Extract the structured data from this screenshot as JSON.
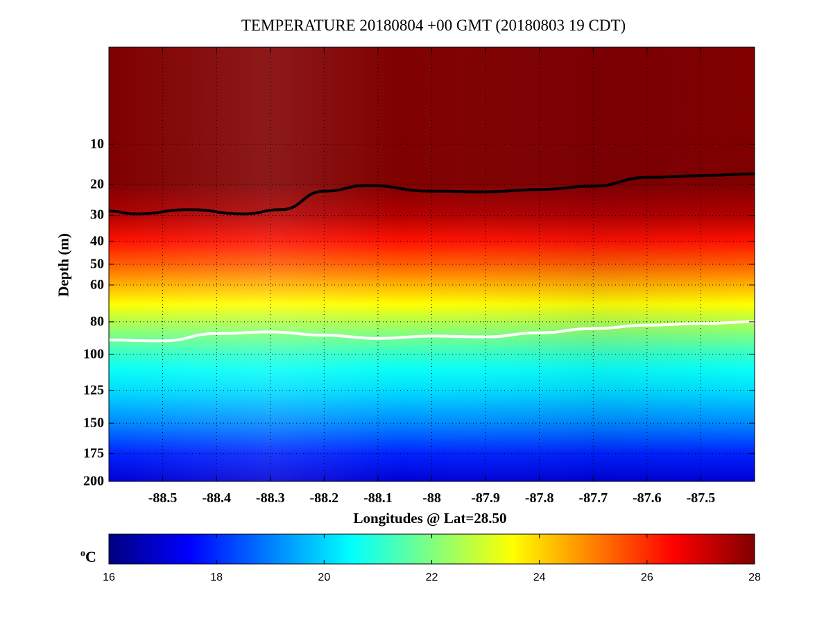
{
  "chart_data": {
    "type": "heatmap",
    "title": "TEMPERATURE 20180804 +00 GMT (20180803 19 CDT)",
    "xlabel": "Longitudes @ Lat=28.50",
    "ylabel": "Depth (m)",
    "xlim": [
      -88.6,
      -87.4
    ],
    "ylim": [
      0,
      200
    ],
    "depth_scale": "sqrt",
    "x_ticks": [
      "-88.5",
      "-88.4",
      "-88.3",
      "-88.2",
      "-88.1",
      "-88",
      "-87.9",
      "-87.8",
      "-87.7",
      "-87.6",
      "-87.5"
    ],
    "y_ticks": [
      "10",
      "20",
      "30",
      "40",
      "50",
      "60",
      "80",
      "100",
      "125",
      "150",
      "175",
      "200"
    ],
    "grid": true,
    "colormap": "jet",
    "colorbar": {
      "unit": "oC",
      "min": 16,
      "max": 28,
      "ticks": [
        "16",
        "18",
        "20",
        "22",
        "24",
        "26",
        "28"
      ]
    },
    "temperature_profile": {
      "depths": [
        0,
        20,
        30,
        40,
        50,
        60,
        70,
        80,
        90,
        100,
        110,
        125,
        150,
        175,
        200
      ],
      "temps": [
        28.5,
        28.2,
        27.4,
        26.3,
        25.4,
        24.4,
        23.5,
        22.6,
        21.8,
        21.1,
        20.6,
        20.1,
        19.1,
        17.9,
        17.0
      ]
    },
    "contours": [
      {
        "label": "28",
        "color": "#000000",
        "x": [
          -88.6,
          -88.55,
          -88.45,
          -88.35,
          -88.28,
          -88.2,
          -88.12,
          -88.0,
          -87.9,
          -87.8,
          -87.7,
          -87.6,
          -87.5,
          -87.4
        ],
        "depth": [
          28.5,
          29.5,
          28,
          29.5,
          28,
          22,
          20.3,
          22,
          22.2,
          21.5,
          20.5,
          18,
          17.5,
          17
        ]
      },
      {
        "label": "23",
        "color": "#ffffff",
        "x": [
          -88.6,
          -88.5,
          -88.4,
          -88.3,
          -88.2,
          -88.1,
          -88.0,
          -87.9,
          -87.8,
          -87.7,
          -87.6,
          -87.5,
          -87.4
        ],
        "depth": [
          91,
          91.5,
          87,
          86,
          88,
          90,
          88.5,
          89,
          86.5,
          84,
          82,
          81,
          80
        ]
      }
    ]
  }
}
